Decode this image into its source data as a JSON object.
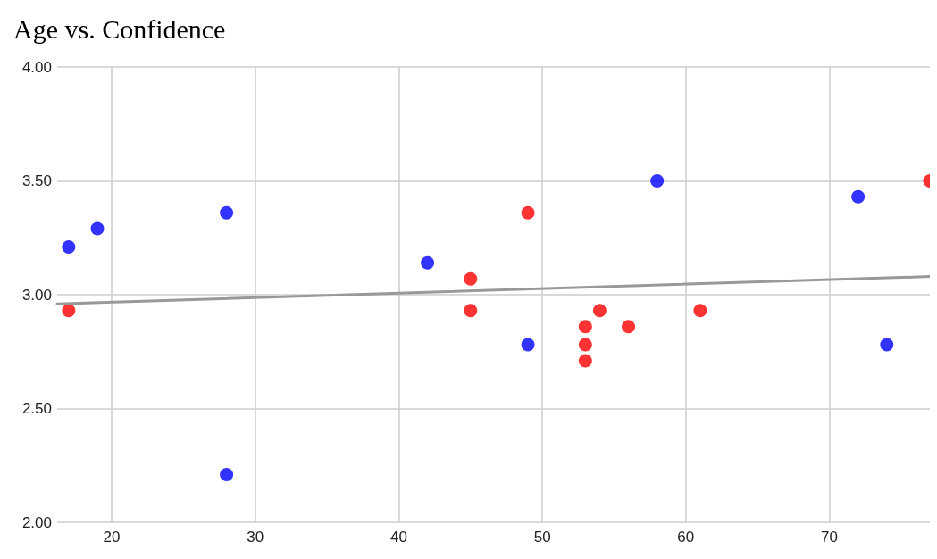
{
  "chart_data": {
    "type": "scatter",
    "title": "Age vs. Confidence",
    "marker": "circle",
    "grid": true,
    "xlim": [
      16.2,
      77
    ],
    "xticks": [
      20,
      30,
      40,
      50,
      60,
      70
    ],
    "ylim": [
      2,
      4
    ],
    "yticks": [
      {
        "value": 2,
        "label": "2.00"
      },
      {
        "value": 2.5,
        "label": "2.50"
      },
      {
        "value": 3,
        "label": "3.00"
      },
      {
        "value": 3.5,
        "label": "3.50"
      },
      {
        "value": 4,
        "label": "4.00"
      }
    ],
    "series": [
      {
        "color": "#999999",
        "type": "line",
        "marker": "none",
        "x": [
          16.2,
          77
        ],
        "values": [
          2.96,
          3.08
        ]
      },
      {
        "color": "#0000ff",
        "x": [
          17,
          19,
          28,
          28,
          42,
          49,
          58,
          72,
          74
        ],
        "values": [
          3.21,
          3.29,
          3.36,
          2.21,
          3.14,
          2.78,
          3.5,
          3.43,
          2.78
        ]
      },
      {
        "color": "#ff0000",
        "x": [
          17,
          45,
          45,
          49,
          53,
          53,
          53,
          54,
          56,
          61,
          77
        ],
        "values": [
          2.93,
          3.07,
          2.93,
          3.36,
          2.86,
          2.78,
          2.71,
          2.93,
          2.86,
          2.93,
          3.5
        ]
      }
    ]
  }
}
